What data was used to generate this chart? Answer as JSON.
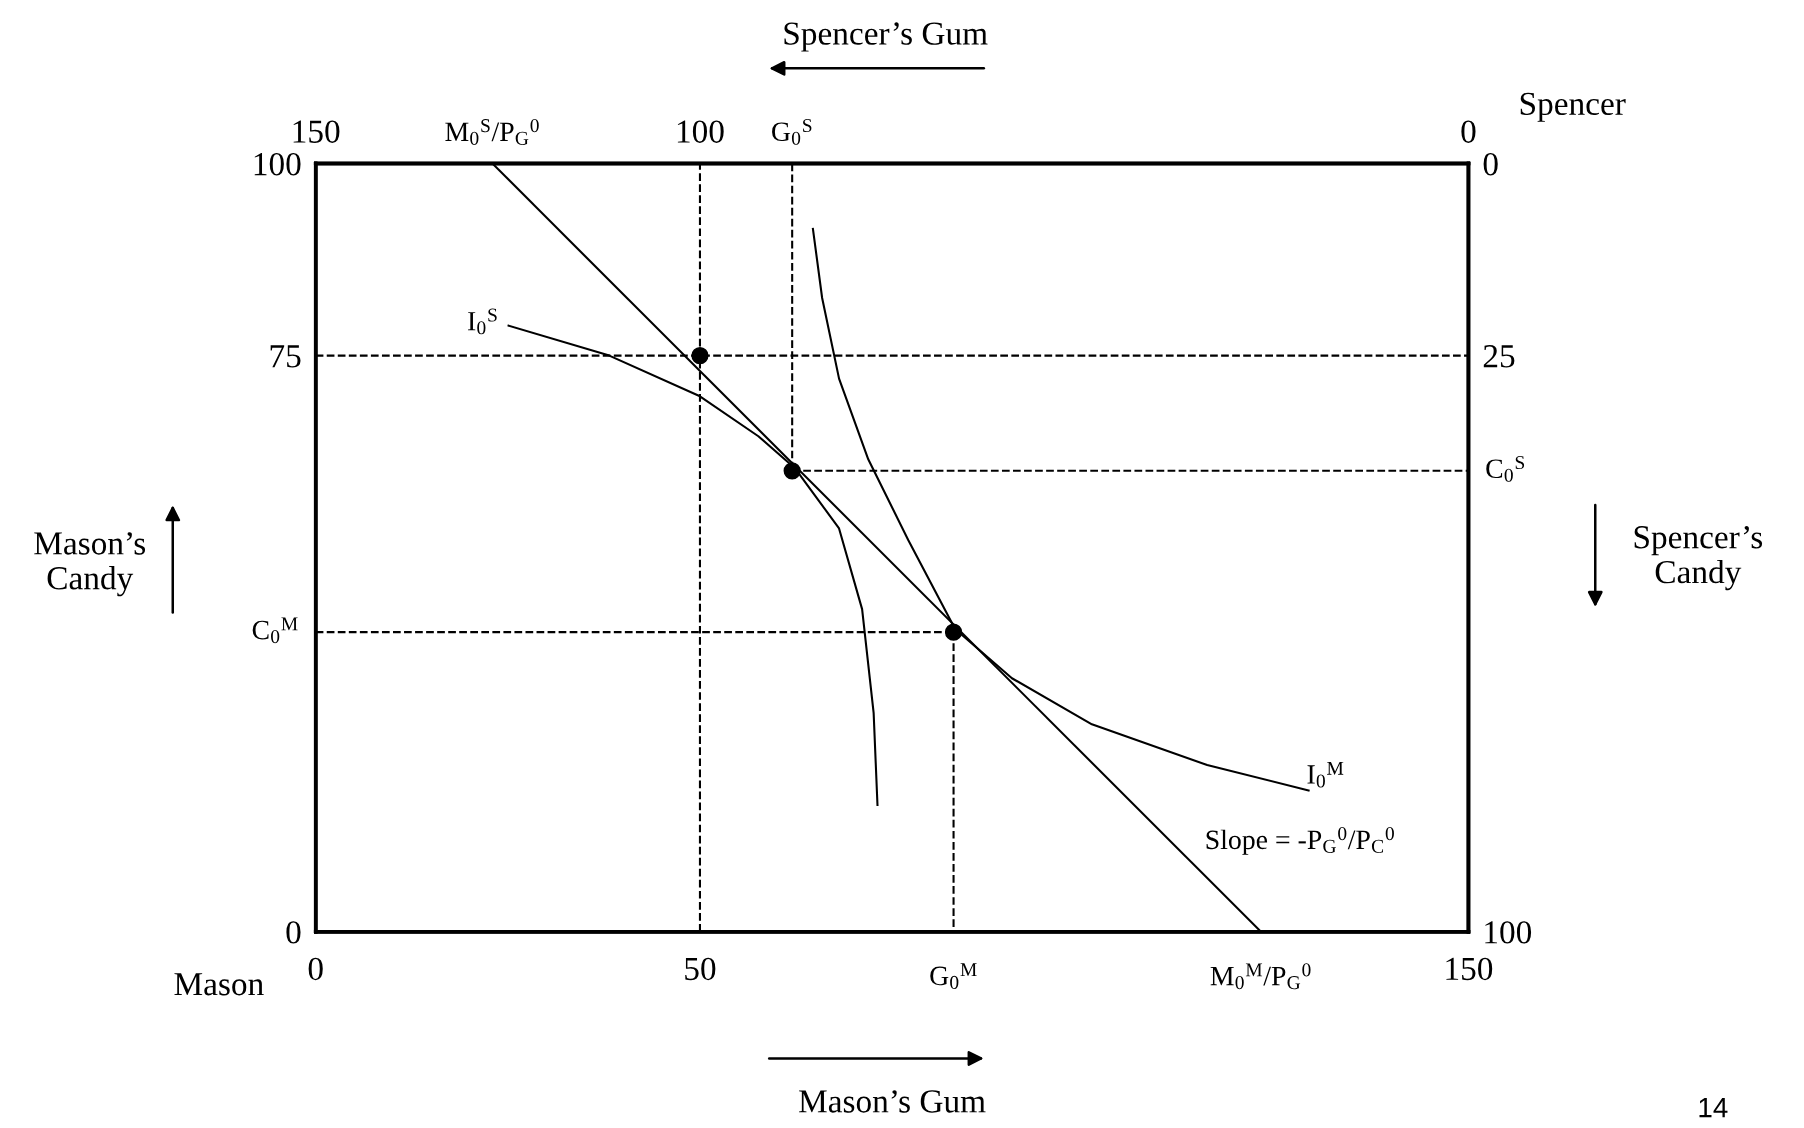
{
  "chart_data": {
    "type": "line",
    "xlim": [
      0,
      150
    ],
    "ylim": [
      0,
      100
    ],
    "x2lim": [
      150,
      0
    ],
    "y2lim": [
      100,
      0
    ],
    "xticks": [
      0,
      50,
      150
    ],
    "yticks": [
      0,
      75,
      100
    ],
    "x2ticks": [
      150,
      100,
      0
    ],
    "y2ticks": [
      0,
      25,
      100
    ],
    "xlabel": "Mason’s Gum",
    "x2label": "Spencer’s Gum",
    "ylabel": "Mason’s\nCandy",
    "y2label": "Spencer’s\nCandy",
    "grid": false,
    "series": [
      {
        "color": "#000000",
        "line_style": "dashed",
        "x": [
          0,
          150
        ],
        "values": [
          75,
          75
        ]
      },
      {
        "color": "#000000",
        "line_style": "dashed",
        "x": [
          50,
          50
        ],
        "values": [
          0,
          100
        ]
      },
      {
        "color": "#000000",
        "line_style": "dashed",
        "x": [
          62,
          62
        ],
        "values": [
          100,
          60
        ]
      },
      {
        "color": "#000000",
        "line_style": "dashed",
        "x": [
          62,
          150
        ],
        "values": [
          60,
          60
        ]
      },
      {
        "color": "#000000",
        "line_style": "dashed",
        "x": [
          0,
          83
        ],
        "values": [
          39,
          39
        ]
      },
      {
        "color": "#000000",
        "line_style": "dashed",
        "x": [
          83,
          83
        ],
        "values": [
          39,
          0
        ]
      },
      {
        "color": "#000000",
        "line_style": "solid",
        "x": [
          23,
          123
        ],
        "values": [
          100,
          0
        ]
      },
      {
        "color": "#000000",
        "line_style": "solid",
        "x": [
          25.1,
          38.2,
          50.0,
          57.6,
          62.4,
          68.1,
          71.1,
          72.6,
          73.1
        ],
        "values": [
          78.9,
          75.0,
          69.7,
          64.5,
          60.3,
          52.5,
          42.0,
          28.5,
          16.5
        ]
      },
      {
        "color": "#000000",
        "line_style": "solid",
        "x": [
          64.7,
          65.9,
          68.1,
          71.9,
          77.1,
          83.2,
          90.6,
          101.0,
          116.0,
          129.2
        ],
        "values": [
          91.5,
          82.5,
          72.0,
          61.5,
          51.0,
          39.4,
          33.0,
          27.0,
          21.7,
          18.4
        ]
      },
      {
        "type": "scatter",
        "color": "#000000",
        "marker": "circle",
        "x": [
          50,
          62,
          83
        ],
        "values": [
          75,
          60,
          39
        ]
      }
    ],
    "annotations": [
      {
        "text": "G$_{0}$$^{M}$",
        "x": 83,
        "y": 0
      },
      {
        "text": "M$_{0}$$^{M}$/P$_{G}$$^{0}$",
        "x": 123,
        "y": 0
      },
      {
        "text": "C$_{0}$$^{M}$",
        "x": 0,
        "y": 39
      },
      {
        "text": "G$_{0}$$^{S}$",
        "x": 62,
        "y": 100
      },
      {
        "text": "M$_{0}$$^{S}$/P$_{G}$$^{0}$",
        "x": 23,
        "y": 100
      },
      {
        "text": "C$_{0}$$^{S}$",
        "x": 150,
        "y": 60
      },
      "I$_{0}$$^{S}$",
      "I$_{0}$$^{M}$",
      "Slope = -P$_{G}$$^{0}$/P$_{C}$$^{0}$",
      "Mason",
      "Spencer",
      "14"
    ]
  }
}
